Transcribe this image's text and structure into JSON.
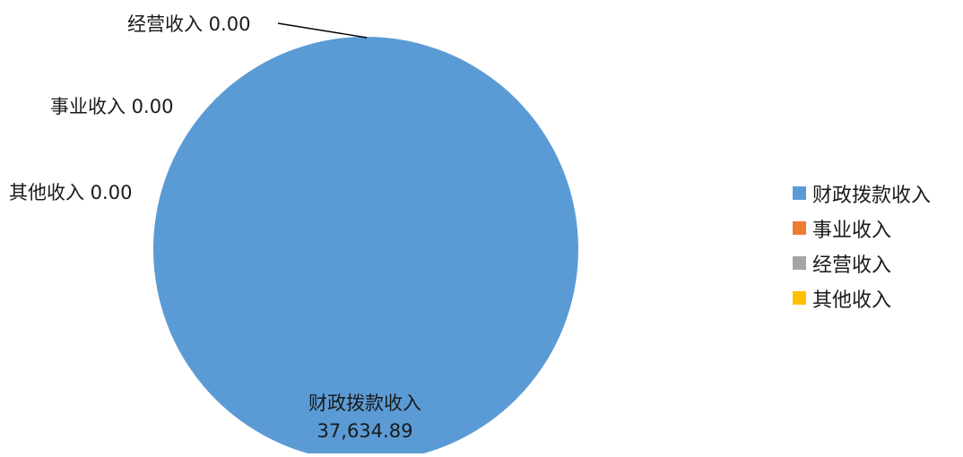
{
  "chart_data": {
    "type": "pie",
    "title": "",
    "series": [
      {
        "values": [
          37634.89,
          0.0,
          0.0,
          0.0
        ]
      }
    ],
    "categories": [
      "财政拨款收入",
      "事业收入",
      "经营收入",
      "其他收入"
    ],
    "slices": [
      {
        "name": "财政拨款收入",
        "value": 37634.89,
        "value_label": "37,634.89",
        "color": "#5b9bd5"
      },
      {
        "name": "事业收入",
        "value": 0.0,
        "value_label": "0.00",
        "color": "#ed7d31"
      },
      {
        "name": "经营收入",
        "value": 0.0,
        "value_label": "0.00",
        "color": "#a5a5a5"
      },
      {
        "name": "其他收入",
        "value": 0.0,
        "value_label": "0.00",
        "color": "#ffc000"
      }
    ],
    "legend": {
      "placement": "right",
      "entries": [
        "财政拨款收入",
        "事业收入",
        "经营收入",
        "其他收入"
      ]
    },
    "data_labels": {
      "main_name": "财政拨款收入",
      "main_value": "37,634.89",
      "business": "事业收入 0.00",
      "operating": "经营收入 0.00",
      "other": "其他收入 0.00"
    }
  }
}
